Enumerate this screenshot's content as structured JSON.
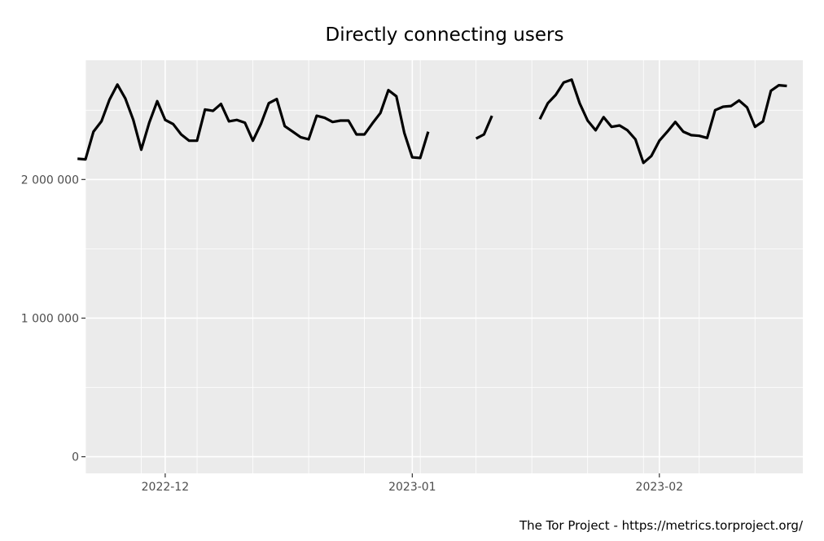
{
  "chart_data": {
    "type": "line",
    "title": "Directly connecting users",
    "caption": "The Tor Project - https://metrics.torproject.org/",
    "xlabel": "",
    "ylabel": "",
    "x_start": "2022-11-21",
    "x_end": "2023-02-19",
    "x_ticks": [
      {
        "date": "2022-12-01",
        "label": "2022-12"
      },
      {
        "date": "2023-01-01",
        "label": "2023-01"
      },
      {
        "date": "2023-02-01",
        "label": "2023-02"
      }
    ],
    "y_ticks": [
      {
        "value": 0,
        "label": "0"
      },
      {
        "value": 1000000,
        "label": "1 000 000"
      },
      {
        "value": 2000000,
        "label": "2 000 000"
      }
    ],
    "ylim": [
      -120000,
      2860000
    ],
    "grid": true,
    "series": [
      {
        "color": "#000000",
        "segments": [
          [
            [
              "2022-11-20",
              2150000
            ],
            [
              "2022-11-21",
              2145000
            ],
            [
              "2022-11-22",
              2345000
            ],
            [
              "2022-11-23",
              2420000
            ],
            [
              "2022-11-24",
              2575000
            ],
            [
              "2022-11-25",
              2685000
            ],
            [
              "2022-11-26",
              2585000
            ],
            [
              "2022-11-27",
              2430000
            ],
            [
              "2022-11-28",
              2215000
            ],
            [
              "2022-11-29",
              2410000
            ],
            [
              "2022-11-30",
              2565000
            ],
            [
              "2022-12-01",
              2430000
            ],
            [
              "2022-12-02",
              2400000
            ],
            [
              "2022-12-03",
              2325000
            ],
            [
              "2022-12-04",
              2280000
            ],
            [
              "2022-12-05",
              2280000
            ],
            [
              "2022-12-06",
              2505000
            ],
            [
              "2022-12-07",
              2495000
            ],
            [
              "2022-12-08",
              2545000
            ],
            [
              "2022-12-09",
              2420000
            ],
            [
              "2022-12-10",
              2430000
            ],
            [
              "2022-12-11",
              2410000
            ],
            [
              "2022-12-12",
              2280000
            ],
            [
              "2022-12-13",
              2400000
            ],
            [
              "2022-12-14",
              2550000
            ],
            [
              "2022-12-15",
              2580000
            ],
            [
              "2022-12-16",
              2385000
            ],
            [
              "2022-12-17",
              2345000
            ],
            [
              "2022-12-18",
              2305000
            ],
            [
              "2022-12-19",
              2290000
            ],
            [
              "2022-12-20",
              2460000
            ],
            [
              "2022-12-21",
              2445000
            ],
            [
              "2022-12-22",
              2415000
            ],
            [
              "2022-12-23",
              2425000
            ],
            [
              "2022-12-24",
              2425000
            ],
            [
              "2022-12-25",
              2325000
            ],
            [
              "2022-12-26",
              2325000
            ],
            [
              "2022-12-27",
              2405000
            ],
            [
              "2022-12-28",
              2480000
            ],
            [
              "2022-12-29",
              2645000
            ],
            [
              "2022-12-30",
              2600000
            ],
            [
              "2022-12-31",
              2335000
            ],
            [
              "2023-01-01",
              2160000
            ],
            [
              "2023-01-02",
              2155000
            ],
            [
              "2023-01-03",
              2345000
            ]
          ],
          [
            [
              "2023-01-09",
              2295000
            ],
            [
              "2023-01-10",
              2325000
            ],
            [
              "2023-01-11",
              2460000
            ]
          ],
          [
            [
              "2023-01-17",
              2435000
            ],
            [
              "2023-01-18",
              2550000
            ],
            [
              "2023-01-19",
              2610000
            ],
            [
              "2023-01-20",
              2700000
            ],
            [
              "2023-01-21",
              2720000
            ],
            [
              "2023-01-22",
              2550000
            ],
            [
              "2023-01-23",
              2425000
            ],
            [
              "2023-01-24",
              2355000
            ],
            [
              "2023-01-25",
              2450000
            ],
            [
              "2023-01-26",
              2380000
            ],
            [
              "2023-01-27",
              2390000
            ],
            [
              "2023-01-28",
              2355000
            ],
            [
              "2023-01-29",
              2290000
            ],
            [
              "2023-01-30",
              2120000
            ],
            [
              "2023-01-31",
              2170000
            ],
            [
              "2023-02-01",
              2280000
            ],
            [
              "2023-02-02",
              2345000
            ],
            [
              "2023-02-03",
              2415000
            ],
            [
              "2023-02-04",
              2345000
            ],
            [
              "2023-02-05",
              2320000
            ],
            [
              "2023-02-06",
              2315000
            ],
            [
              "2023-02-07",
              2300000
            ],
            [
              "2023-02-08",
              2500000
            ],
            [
              "2023-02-09",
              2525000
            ],
            [
              "2023-02-10",
              2530000
            ],
            [
              "2023-02-11",
              2570000
            ],
            [
              "2023-02-12",
              2520000
            ],
            [
              "2023-02-13",
              2380000
            ],
            [
              "2023-02-14",
              2420000
            ],
            [
              "2023-02-15",
              2640000
            ],
            [
              "2023-02-16",
              2680000
            ],
            [
              "2023-02-17",
              2675000
            ]
          ]
        ]
      }
    ],
    "legend": "none"
  }
}
